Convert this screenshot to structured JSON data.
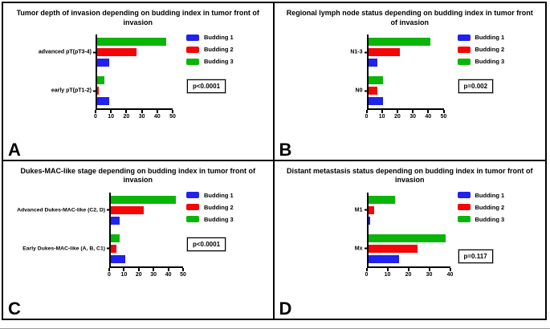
{
  "chart_data": [
    {
      "panel_letter": "A",
      "type": "bar",
      "orientation": "horizontal",
      "title": "Tumor depth of invasion depending on budding index in tumor front of invasion",
      "p_label": "p<0.0001",
      "categories": [
        "advanced pT(pT3-4)",
        "early pT(pT1-2)"
      ],
      "series": [
        {
          "name": "Budding 1",
          "color": "#2121f0",
          "values": [
            8,
            8
          ]
        },
        {
          "name": "Budding 2",
          "color": "#f40606",
          "values": [
            26,
            1
          ]
        },
        {
          "name": "Budding 3",
          "color": "#0ab50a",
          "values": [
            46,
            5
          ]
        }
      ],
      "xlim": [
        0,
        50
      ],
      "xticks": [
        0,
        10,
        20,
        30,
        40,
        50
      ],
      "legend_position": "right",
      "grid": false
    },
    {
      "panel_letter": "B",
      "type": "bar",
      "orientation": "horizontal",
      "title": "Regional lymph node status depending on budding index in tumor front of invasion",
      "p_label": "p=0.002",
      "categories": [
        "N1-3",
        "N0"
      ],
      "series": [
        {
          "name": "Budding 1",
          "color": "#2121f0",
          "values": [
            6,
            10
          ]
        },
        {
          "name": "Budding 2",
          "color": "#f40606",
          "values": [
            21,
            6
          ]
        },
        {
          "name": "Budding 3",
          "color": "#0ab50a",
          "values": [
            41,
            10
          ]
        }
      ],
      "xlim": [
        0,
        50
      ],
      "xticks": [
        0,
        10,
        20,
        30,
        40,
        50
      ],
      "legend_position": "right",
      "grid": false
    },
    {
      "panel_letter": "C",
      "type": "bar",
      "orientation": "horizontal",
      "title": "Dukes-MAC-like stage depending on budding index in tumor front of invasion",
      "p_label": "p<0.0001",
      "categories": [
        "Advanced Dukes-MAC-like (C2, D)",
        "Early Dukes-MAC-like (A, B, C1)"
      ],
      "series": [
        {
          "name": "Budding 1",
          "color": "#2121f0",
          "values": [
            6,
            10
          ]
        },
        {
          "name": "Budding 2",
          "color": "#f40606",
          "values": [
            23,
            4
          ]
        },
        {
          "name": "Budding 3",
          "color": "#0ab50a",
          "values": [
            45,
            6
          ]
        }
      ],
      "xlim": [
        0,
        50
      ],
      "xticks": [
        0,
        10,
        20,
        30,
        40,
        50
      ],
      "legend_position": "right",
      "grid": false
    },
    {
      "panel_letter": "D",
      "type": "bar",
      "orientation": "horizontal",
      "title": "Distant metastasis status depending on budding index in tumor front of invasion",
      "p_label": "p=0.117",
      "categories": [
        "M1",
        "Mx"
      ],
      "series": [
        {
          "name": "Budding 1",
          "color": "#2121f0",
          "values": [
            1,
            15
          ]
        },
        {
          "name": "Budding 2",
          "color": "#f40606",
          "values": [
            3,
            24
          ]
        },
        {
          "name": "Budding 3",
          "color": "#0ab50a",
          "values": [
            13,
            38
          ]
        }
      ],
      "xlim": [
        0,
        40
      ],
      "xticks": [
        0,
        10,
        20,
        30,
        40
      ],
      "legend_position": "right",
      "grid": false
    }
  ]
}
